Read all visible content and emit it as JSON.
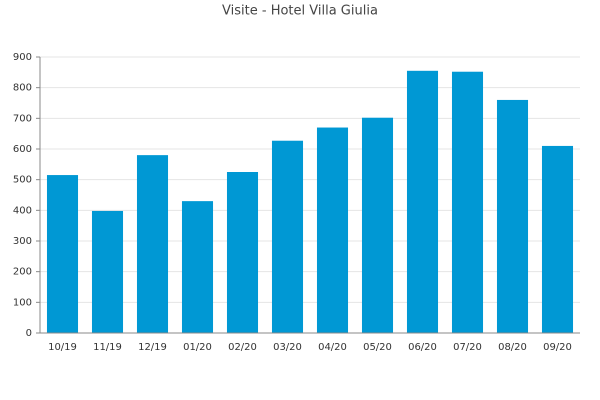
{
  "chart_data": {
    "type": "bar",
    "title": "Visite - Hotel Villa Giulia",
    "categories": [
      "10/19",
      "11/19",
      "12/19",
      "01/20",
      "02/20",
      "03/20",
      "04/20",
      "05/20",
      "06/20",
      "07/20",
      "08/20",
      "09/20"
    ],
    "values": [
      515,
      398,
      580,
      430,
      525,
      627,
      670,
      702,
      855,
      852,
      760,
      610
    ],
    "color": "#0098d4",
    "ylim": [
      0,
      900
    ],
    "yticks": [
      0,
      100,
      200,
      300,
      400,
      500,
      600,
      700,
      800,
      900
    ],
    "grid": true
  }
}
